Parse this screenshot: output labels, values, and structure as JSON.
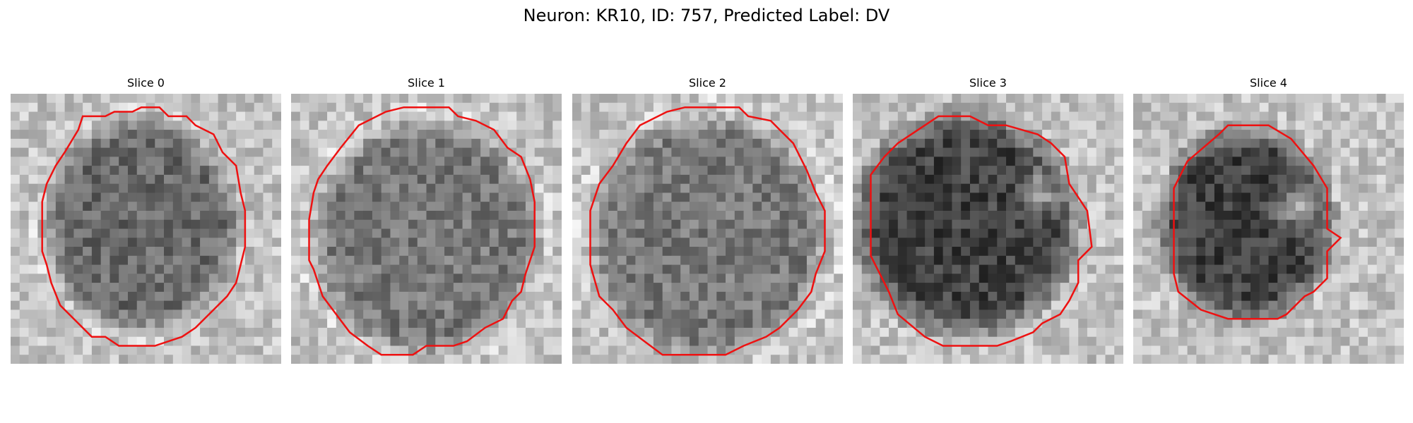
{
  "figure": {
    "title": "Neuron: KR10, ID: 757, Predicted Label: DV"
  },
  "colors": {
    "contour": "#ee1111",
    "background": "#ffffff"
  },
  "panels": [
    {
      "title": "Slice 0",
      "image": {
        "description_icon": "grayscale-microscopy-slice",
        "grid": "30x30 grayscale pixels"
      }
    },
    {
      "title": "Slice 1",
      "image": {
        "description_icon": "grayscale-microscopy-slice",
        "grid": "30x30 grayscale pixels"
      }
    },
    {
      "title": "Slice 2",
      "image": {
        "description_icon": "grayscale-microscopy-slice",
        "grid": "30x30 grayscale pixels"
      }
    },
    {
      "title": "Slice 3",
      "image": {
        "description_icon": "grayscale-microscopy-slice",
        "grid": "30x30 grayscale pixels"
      }
    },
    {
      "title": "Slice 4",
      "image": {
        "description_icon": "grayscale-microscopy-slice",
        "grid": "30x30 grayscale pixels"
      }
    }
  ]
}
